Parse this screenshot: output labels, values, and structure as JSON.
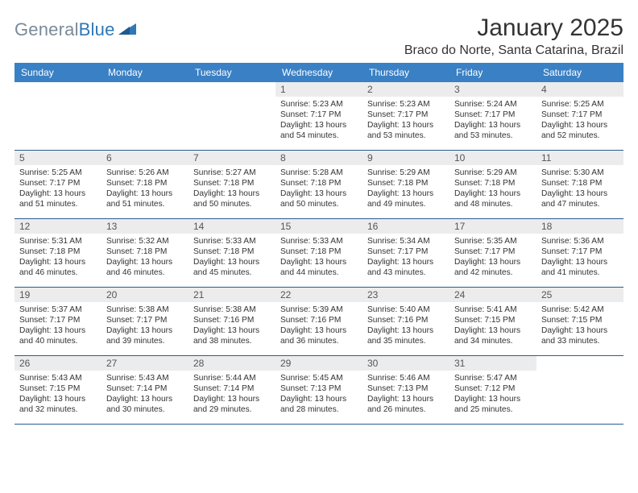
{
  "brand": {
    "part1": "General",
    "part2": "Blue"
  },
  "title": "January 2025",
  "location": "Braco do Norte, Santa Catarina, Brazil",
  "colors": {
    "header_bg": "#3a80c4",
    "header_text": "#ffffff",
    "divider": "#275f8f",
    "daynum_bg": "#ececec",
    "body_text": "#333333",
    "logo_gray": "#7a8a99",
    "logo_blue": "#2f77b6"
  },
  "dow": [
    "Sunday",
    "Monday",
    "Tuesday",
    "Wednesday",
    "Thursday",
    "Friday",
    "Saturday"
  ],
  "weeks": [
    [
      {
        "n": "",
        "sr": "",
        "ss": "",
        "dl": ""
      },
      {
        "n": "",
        "sr": "",
        "ss": "",
        "dl": ""
      },
      {
        "n": "",
        "sr": "",
        "ss": "",
        "dl": ""
      },
      {
        "n": "1",
        "sr": "5:23 AM",
        "ss": "7:17 PM",
        "dl": "13 hours and 54 minutes."
      },
      {
        "n": "2",
        "sr": "5:23 AM",
        "ss": "7:17 PM",
        "dl": "13 hours and 53 minutes."
      },
      {
        "n": "3",
        "sr": "5:24 AM",
        "ss": "7:17 PM",
        "dl": "13 hours and 53 minutes."
      },
      {
        "n": "4",
        "sr": "5:25 AM",
        "ss": "7:17 PM",
        "dl": "13 hours and 52 minutes."
      }
    ],
    [
      {
        "n": "5",
        "sr": "5:25 AM",
        "ss": "7:17 PM",
        "dl": "13 hours and 51 minutes."
      },
      {
        "n": "6",
        "sr": "5:26 AM",
        "ss": "7:18 PM",
        "dl": "13 hours and 51 minutes."
      },
      {
        "n": "7",
        "sr": "5:27 AM",
        "ss": "7:18 PM",
        "dl": "13 hours and 50 minutes."
      },
      {
        "n": "8",
        "sr": "5:28 AM",
        "ss": "7:18 PM",
        "dl": "13 hours and 50 minutes."
      },
      {
        "n": "9",
        "sr": "5:29 AM",
        "ss": "7:18 PM",
        "dl": "13 hours and 49 minutes."
      },
      {
        "n": "10",
        "sr": "5:29 AM",
        "ss": "7:18 PM",
        "dl": "13 hours and 48 minutes."
      },
      {
        "n": "11",
        "sr": "5:30 AM",
        "ss": "7:18 PM",
        "dl": "13 hours and 47 minutes."
      }
    ],
    [
      {
        "n": "12",
        "sr": "5:31 AM",
        "ss": "7:18 PM",
        "dl": "13 hours and 46 minutes."
      },
      {
        "n": "13",
        "sr": "5:32 AM",
        "ss": "7:18 PM",
        "dl": "13 hours and 46 minutes."
      },
      {
        "n": "14",
        "sr": "5:33 AM",
        "ss": "7:18 PM",
        "dl": "13 hours and 45 minutes."
      },
      {
        "n": "15",
        "sr": "5:33 AM",
        "ss": "7:18 PM",
        "dl": "13 hours and 44 minutes."
      },
      {
        "n": "16",
        "sr": "5:34 AM",
        "ss": "7:17 PM",
        "dl": "13 hours and 43 minutes."
      },
      {
        "n": "17",
        "sr": "5:35 AM",
        "ss": "7:17 PM",
        "dl": "13 hours and 42 minutes."
      },
      {
        "n": "18",
        "sr": "5:36 AM",
        "ss": "7:17 PM",
        "dl": "13 hours and 41 minutes."
      }
    ],
    [
      {
        "n": "19",
        "sr": "5:37 AM",
        "ss": "7:17 PM",
        "dl": "13 hours and 40 minutes."
      },
      {
        "n": "20",
        "sr": "5:38 AM",
        "ss": "7:17 PM",
        "dl": "13 hours and 39 minutes."
      },
      {
        "n": "21",
        "sr": "5:38 AM",
        "ss": "7:16 PM",
        "dl": "13 hours and 38 minutes."
      },
      {
        "n": "22",
        "sr": "5:39 AM",
        "ss": "7:16 PM",
        "dl": "13 hours and 36 minutes."
      },
      {
        "n": "23",
        "sr": "5:40 AM",
        "ss": "7:16 PM",
        "dl": "13 hours and 35 minutes."
      },
      {
        "n": "24",
        "sr": "5:41 AM",
        "ss": "7:15 PM",
        "dl": "13 hours and 34 minutes."
      },
      {
        "n": "25",
        "sr": "5:42 AM",
        "ss": "7:15 PM",
        "dl": "13 hours and 33 minutes."
      }
    ],
    [
      {
        "n": "26",
        "sr": "5:43 AM",
        "ss": "7:15 PM",
        "dl": "13 hours and 32 minutes."
      },
      {
        "n": "27",
        "sr": "5:43 AM",
        "ss": "7:14 PM",
        "dl": "13 hours and 30 minutes."
      },
      {
        "n": "28",
        "sr": "5:44 AM",
        "ss": "7:14 PM",
        "dl": "13 hours and 29 minutes."
      },
      {
        "n": "29",
        "sr": "5:45 AM",
        "ss": "7:13 PM",
        "dl": "13 hours and 28 minutes."
      },
      {
        "n": "30",
        "sr": "5:46 AM",
        "ss": "7:13 PM",
        "dl": "13 hours and 26 minutes."
      },
      {
        "n": "31",
        "sr": "5:47 AM",
        "ss": "7:12 PM",
        "dl": "13 hours and 25 minutes."
      },
      {
        "n": "",
        "sr": "",
        "ss": "",
        "dl": ""
      }
    ]
  ],
  "labels": {
    "sunrise": "Sunrise:",
    "sunset": "Sunset:",
    "daylight": "Daylight:"
  }
}
